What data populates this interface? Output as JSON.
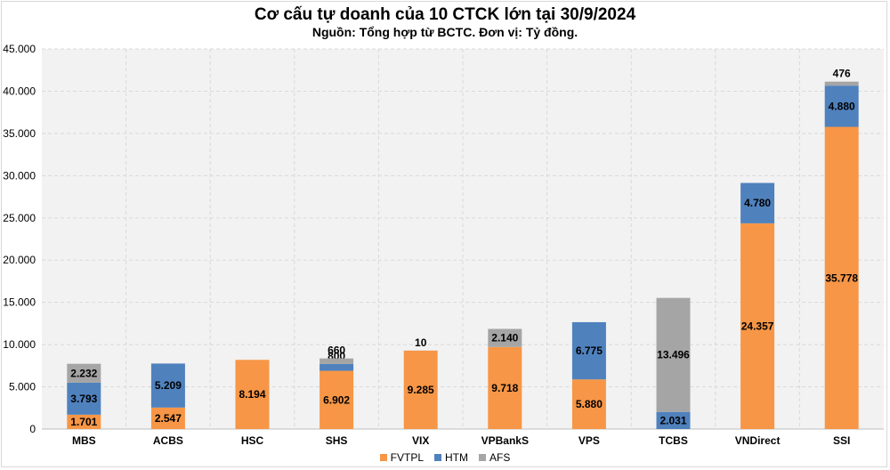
{
  "chart_data": {
    "type": "bar",
    "stacked": true,
    "title": "Cơ cấu tự doanh của 10 CTCK lớn tại 30/9/2024",
    "subtitle": "Nguồn: Tổng hợp từ BCTC. Đơn vị: Tỷ đồng.",
    "categories": [
      "MBS",
      "ACBS",
      "HSC",
      "SHS",
      "VIX",
      "VPBankS",
      "VPS",
      "TCBS",
      "VNDirect",
      "SSI"
    ],
    "series": [
      {
        "name": "FVTPL",
        "color": "#f79646",
        "values": [
          1701,
          2547,
          8194,
          6902,
          9285,
          9718,
          5880,
          null,
          24357,
          35778
        ]
      },
      {
        "name": "HTM",
        "color": "#4f81bd",
        "values": [
          3793,
          5209,
          null,
          800,
          null,
          null,
          6775,
          2031,
          4780,
          4880
        ]
      },
      {
        "name": "AFS",
        "color": "#a5a5a5",
        "values": [
          2232,
          null,
          null,
          660,
          10,
          2140,
          null,
          13496,
          null,
          476
        ]
      }
    ],
    "data_labels": [
      [
        "1.701",
        "2.547",
        "8.194",
        "6.902",
        "9.285",
        "9.718",
        "5.880",
        null,
        "24.357",
        "35.778"
      ],
      [
        "3.793",
        "5.209",
        null,
        "800",
        null,
        null,
        "6.775",
        "2.031",
        "4.780",
        "4.880"
      ],
      [
        "2.232",
        null,
        null,
        "660",
        "10",
        "2.140",
        null,
        "13.496",
        null,
        "476"
      ]
    ],
    "ylim": [
      0,
      45000
    ],
    "yticks": [
      0,
      5000,
      10000,
      15000,
      20000,
      25000,
      30000,
      35000,
      40000,
      45000
    ],
    "ytick_labels": [
      "0",
      "5.000",
      "10.000",
      "15.000",
      "20.000",
      "25.000",
      "30.000",
      "35.000",
      "40.000",
      "45.000"
    ],
    "grid": true,
    "legend_position": "bottom"
  }
}
